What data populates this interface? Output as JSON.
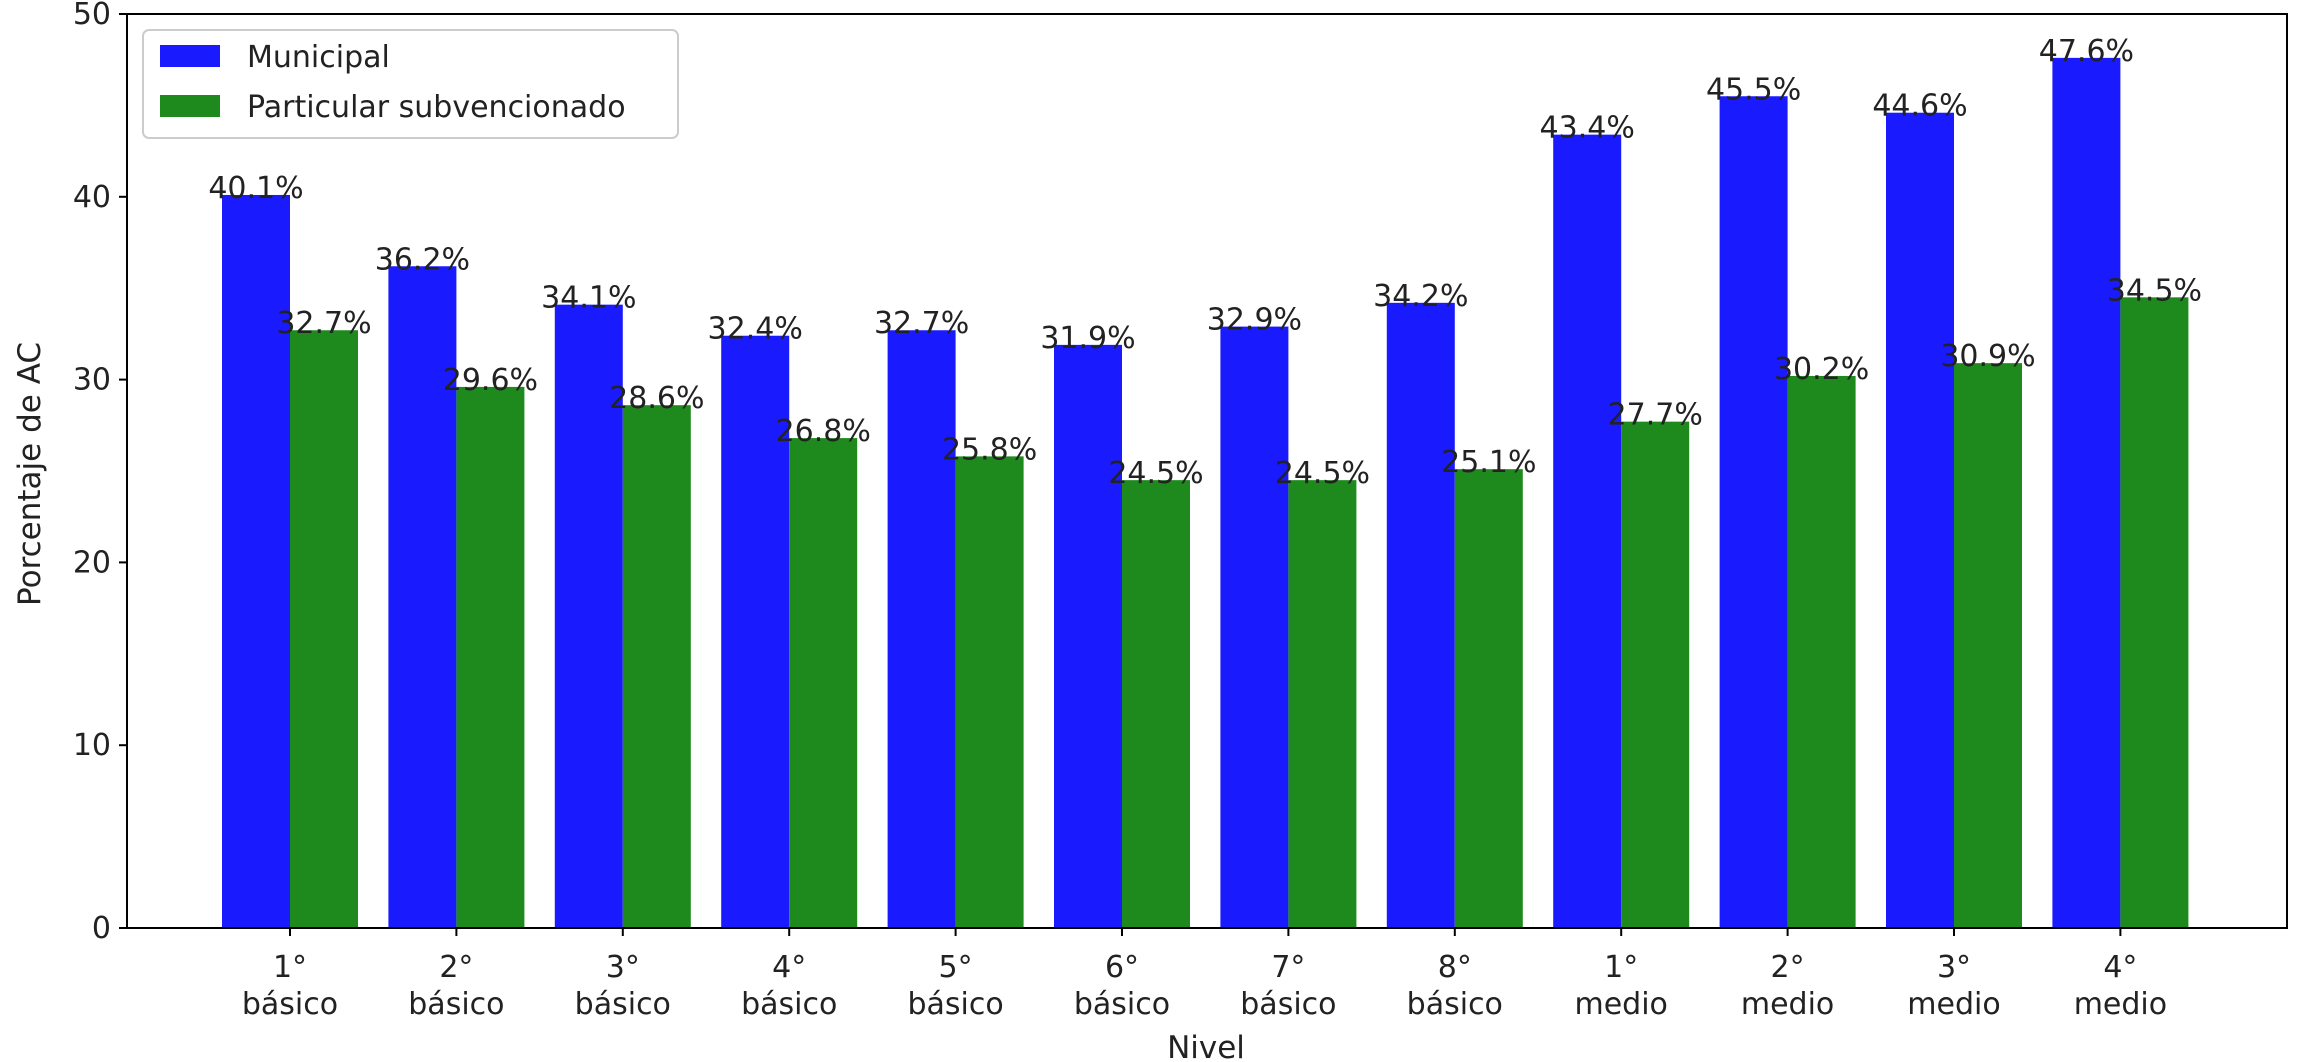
{
  "chart_data": {
    "type": "bar",
    "title": "",
    "xlabel": "Nivel",
    "ylabel": "Porcentaje de AC",
    "ylim": [
      0,
      50
    ],
    "yticks": [
      0,
      10,
      20,
      30,
      40,
      50
    ],
    "categories": [
      [
        "1°",
        "básico"
      ],
      [
        "2°",
        "básico"
      ],
      [
        "3°",
        "básico"
      ],
      [
        "4°",
        "básico"
      ],
      [
        "5°",
        "básico"
      ],
      [
        "6°",
        "básico"
      ],
      [
        "7°",
        "básico"
      ],
      [
        "8°",
        "básico"
      ],
      [
        "1°",
        "medio"
      ],
      [
        "2°",
        "medio"
      ],
      [
        "3°",
        "medio"
      ],
      [
        "4°",
        "medio"
      ]
    ],
    "series": [
      {
        "name": "Municipal",
        "color": "#1a1aff",
        "values": [
          40.1,
          36.2,
          34.1,
          32.4,
          32.7,
          31.9,
          32.9,
          34.2,
          43.4,
          45.5,
          44.6,
          47.6
        ],
        "labels": [
          "40.1%",
          "36.2%",
          "34.1%",
          "32.4%",
          "32.7%",
          "31.9%",
          "32.9%",
          "34.2%",
          "43.4%",
          "45.5%",
          "44.6%",
          "47.6%"
        ]
      },
      {
        "name": "Particular subvencionado",
        "color": "#1e8a1e",
        "values": [
          32.7,
          29.6,
          28.6,
          26.8,
          25.8,
          24.5,
          24.5,
          25.1,
          27.7,
          30.2,
          30.9,
          34.5
        ],
        "labels": [
          "32.7%",
          "29.6%",
          "28.6%",
          "26.8%",
          "25.8%",
          "24.5%",
          "24.5%",
          "25.1%",
          "27.7%",
          "30.2%",
          "30.9%",
          "34.5%"
        ]
      }
    ],
    "grid": false,
    "legend_position": "top-left"
  }
}
